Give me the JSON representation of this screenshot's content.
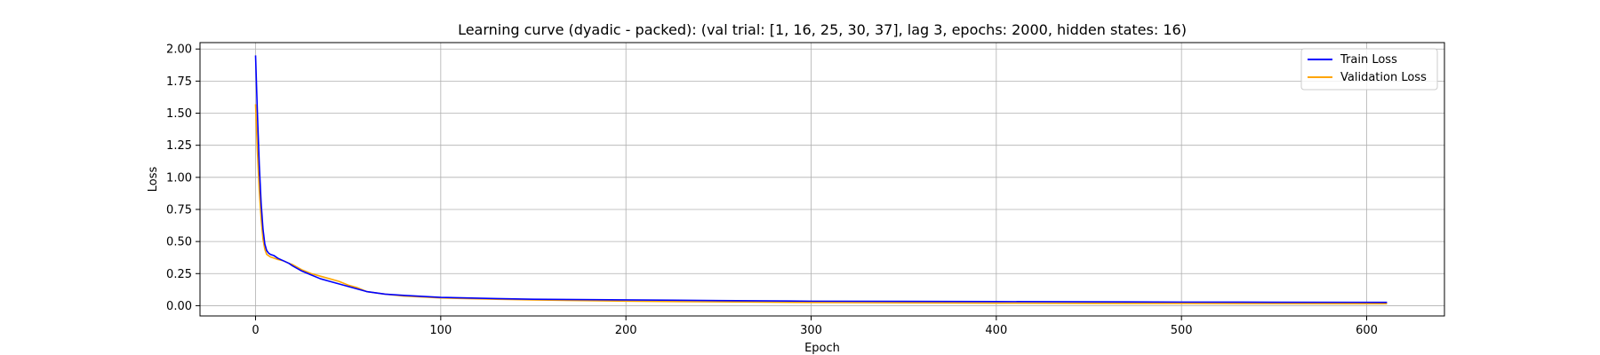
{
  "chart_data": {
    "type": "line",
    "title": "Learning curve (dyadic - packed): (val trial: [1, 16, 25, 30, 37], lag 3, epochs: 2000, hidden states: 16)",
    "xlabel": "Epoch",
    "ylabel": "Loss",
    "xlim": [
      -30,
      642
    ],
    "ylim": [
      -0.08,
      2.05
    ],
    "xticks": [
      0,
      100,
      200,
      300,
      400,
      500,
      600
    ],
    "yticks": [
      0.0,
      0.25,
      0.5,
      0.75,
      1.0,
      1.25,
      1.5,
      1.75,
      2.0
    ],
    "ytick_labels": [
      "0.00",
      "0.25",
      "0.50",
      "0.75",
      "1.00",
      "1.25",
      "1.50",
      "1.75",
      "2.00"
    ],
    "grid": true,
    "legend_position": "top-right",
    "series": [
      {
        "name": "Train Loss",
        "color": "#0000ff",
        "x": [
          0,
          1,
          2,
          3,
          4,
          5,
          6,
          7,
          8,
          10,
          12,
          15,
          18,
          20,
          25,
          30,
          35,
          40,
          45,
          50,
          55,
          60,
          70,
          80,
          100,
          130,
          150,
          200,
          250,
          300,
          350,
          400,
          450,
          500,
          550,
          611
        ],
        "y": [
          1.95,
          1.5,
          1.1,
          0.8,
          0.6,
          0.48,
          0.43,
          0.41,
          0.4,
          0.39,
          0.37,
          0.35,
          0.33,
          0.31,
          0.27,
          0.24,
          0.21,
          0.19,
          0.17,
          0.15,
          0.13,
          0.11,
          0.09,
          0.08,
          0.065,
          0.055,
          0.05,
          0.045,
          0.04,
          0.035,
          0.034,
          0.032,
          0.03,
          0.028,
          0.027,
          0.026
        ]
      },
      {
        "name": "Validation Loss",
        "color": "#ffa500",
        "x": [
          0,
          1,
          2,
          3,
          4,
          5,
          6,
          7,
          8,
          10,
          12,
          15,
          18,
          20,
          25,
          30,
          35,
          40,
          45,
          50,
          55,
          60,
          70,
          80,
          100,
          130,
          150,
          200,
          250,
          300,
          350,
          400,
          450,
          500,
          550,
          611
        ],
        "y": [
          1.57,
          1.2,
          0.9,
          0.68,
          0.52,
          0.44,
          0.4,
          0.39,
          0.38,
          0.37,
          0.36,
          0.35,
          0.33,
          0.32,
          0.28,
          0.25,
          0.23,
          0.21,
          0.19,
          0.16,
          0.14,
          0.11,
          0.09,
          0.075,
          0.06,
          0.05,
          0.045,
          0.035,
          0.03,
          0.025,
          0.022,
          0.02,
          0.018,
          0.017,
          0.016,
          0.015
        ]
      }
    ]
  }
}
